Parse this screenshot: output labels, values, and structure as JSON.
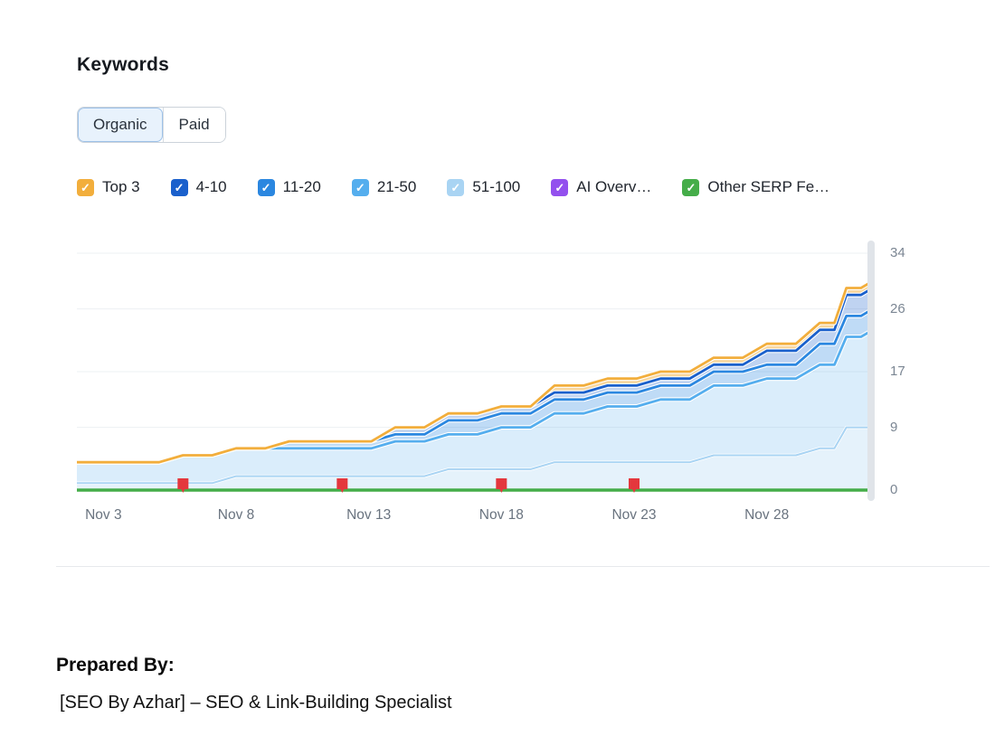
{
  "header": {
    "title": "Keywords"
  },
  "toggle": {
    "options": [
      {
        "id": "organic",
        "label": "Organic",
        "selected": true
      },
      {
        "id": "paid",
        "label": "Paid",
        "selected": false
      }
    ]
  },
  "icons": {
    "check_glyph": "✓"
  },
  "legend": {
    "items": [
      {
        "id": "top-3",
        "label": "Top 3",
        "color": "#F2AE3C",
        "checked": true
      },
      {
        "id": "4-10",
        "label": "4-10",
        "color": "#1A60CC",
        "checked": true
      },
      {
        "id": "11-20",
        "label": "11-20",
        "color": "#2B87E0",
        "checked": true
      },
      {
        "id": "21-50",
        "label": "21-50",
        "color": "#55AEEE",
        "checked": true
      },
      {
        "id": "51-100",
        "label": "51-100",
        "color": "#A9D4F3",
        "checked": true
      },
      {
        "id": "ai-overviews",
        "label": "AI Overv…",
        "color": "#9350EE",
        "checked": true
      },
      {
        "id": "other-serp-features",
        "label": "Other SERP Fe…",
        "color": "#45AD49",
        "checked": true
      }
    ]
  },
  "chart_data": {
    "type": "area",
    "stacked": true,
    "title": "Keywords",
    "xlabel": "",
    "ylabel": "",
    "grid": true,
    "legend_position": "top",
    "ylim": [
      0,
      34
    ],
    "y_ticks": [
      0,
      9,
      17,
      26,
      34
    ],
    "x_days": [
      1,
      3,
      5,
      7,
      9,
      11,
      13,
      15,
      17,
      19,
      21,
      23,
      25,
      27,
      29,
      30,
      31
    ],
    "x_dates": [
      "Nov 2",
      "Nov 4",
      "Nov 6",
      "Nov 8",
      "Nov 10",
      "Nov 12",
      "Nov 14",
      "Nov 16",
      "Nov 18",
      "Nov 20",
      "Nov 22",
      "Nov 24",
      "Nov 26",
      "Nov 28",
      "Nov 30",
      "Dec 1",
      "Dec 2"
    ],
    "x_tick_days": [
      2,
      7,
      12,
      17,
      22,
      27
    ],
    "x_tick_labels": [
      "Nov 3",
      "Nov 8",
      "Nov 13",
      "Nov 18",
      "Nov 23",
      "Nov 28"
    ],
    "stack_order": [
      "51-100",
      "21-50",
      "11-20",
      "4-10",
      "Top 3"
    ],
    "baseline_series": "Other SERP Fe…",
    "series": [
      {
        "name": "Top 3",
        "color": "#F2AE3C",
        "values": [
          0,
          0,
          0,
          0,
          0,
          0,
          0,
          0,
          0,
          1,
          1,
          1,
          1,
          1,
          1,
          1,
          1
        ]
      },
      {
        "name": "4-10",
        "color": "#1A60CC",
        "values": [
          0,
          0,
          0,
          0,
          0,
          0,
          1,
          1,
          1,
          1,
          1,
          1,
          1,
          2,
          2,
          3,
          3
        ]
      },
      {
        "name": "11-20",
        "color": "#2B87E0",
        "values": [
          0,
          0,
          0,
          0,
          1,
          1,
          1,
          2,
          2,
          2,
          2,
          2,
          2,
          2,
          3,
          3,
          3
        ]
      },
      {
        "name": "21-50",
        "color": "#55AEEE",
        "values": [
          3,
          3,
          4,
          4,
          4,
          4,
          5,
          5,
          6,
          7,
          8,
          9,
          10,
          11,
          12,
          13,
          14
        ]
      },
      {
        "name": "51-100",
        "color": "#A9D4F3",
        "values": [
          1,
          1,
          1,
          2,
          2,
          2,
          2,
          3,
          3,
          4,
          4,
          4,
          5,
          5,
          6,
          9,
          9
        ]
      },
      {
        "name": "AI Overv…",
        "color": "#9350EE",
        "values": [
          0,
          0,
          0,
          0,
          0,
          0,
          0,
          0,
          0,
          0,
          0,
          0,
          0,
          0,
          0,
          0,
          0
        ]
      },
      {
        "name": "Other SERP Fe…",
        "color": "#45AD49",
        "values": [
          0,
          0,
          0,
          0,
          0,
          0,
          0,
          0,
          0,
          0,
          0,
          0,
          0,
          0,
          0,
          0,
          0
        ]
      }
    ],
    "notes": [
      {
        "day": 5,
        "date": "Nov 6"
      },
      {
        "day": 11,
        "date": "Nov 12"
      },
      {
        "day": 17,
        "date": "Nov 18"
      },
      {
        "day": 22,
        "date": "Nov 23"
      }
    ],
    "note_color": "#E4373D"
  },
  "footer": {
    "prepared_by_label": "Prepared By:",
    "prepared_by_value": "[SEO By Azhar] – SEO & Link-Building Specialist"
  }
}
